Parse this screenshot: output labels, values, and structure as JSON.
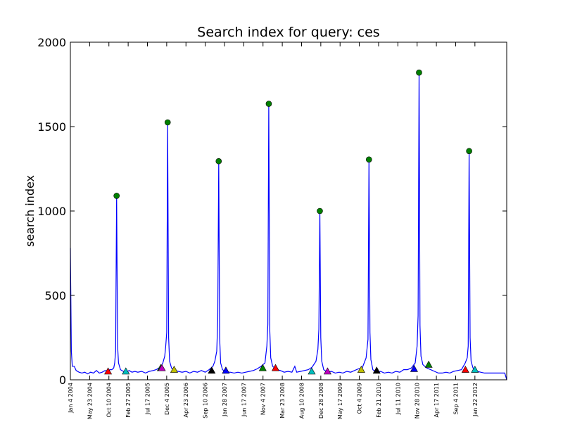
{
  "chart_data": {
    "type": "line",
    "title": "Search index for query: ces",
    "xlabel": "",
    "ylabel": "search index",
    "ylim": [
      0,
      2000
    ],
    "yticks": [
      0,
      500,
      1000,
      1500,
      2000
    ],
    "xlim": [
      "2004-01-04",
      "2012-09-09"
    ],
    "xticks": [
      "2004-01-04",
      "2004-05-23",
      "2004-10-10",
      "2005-02-27",
      "2005-07-17",
      "2005-12-04",
      "2006-04-23",
      "2006-09-10",
      "2007-01-28",
      "2007-06-17",
      "2007-11-04",
      "2008-03-23",
      "2008-08-10",
      "2008-12-28",
      "2009-05-17",
      "2009-10-04",
      "2010-02-21",
      "2010-07-11",
      "2010-11-28",
      "2011-04-17",
      "2011-09-04",
      "2012-01-22"
    ],
    "xticklabels": [
      "Jan 4 2004",
      "May 23 2004",
      "Oct 10 2004",
      "Feb 27 2005",
      "Jul 17 2005",
      "Dec 4 2005",
      "Apr 23 2006",
      "Sep 10 2006",
      "Jan 28 2007",
      "Jun 17 2007",
      "Nov 4 2007",
      "Mar 23 2008",
      "Aug 10 2008",
      "Dec 28 2008",
      "May 17 2009",
      "Oct 4 2009",
      "Feb 21 2010",
      "Jul 11 2010",
      "Nov 28 2010",
      "Apr 17 2011",
      "Sep 4 2011",
      "Jan 22 2012"
    ],
    "grid": false,
    "series": [
      {
        "color": "#0000ff",
        "points": [
          [
            "2004-01-04",
            780
          ],
          [
            "2004-01-11",
            170
          ],
          [
            "2004-01-18",
            80
          ],
          [
            "2004-01-25",
            80
          ],
          [
            "2004-02-01",
            80
          ],
          [
            "2004-02-15",
            55
          ],
          [
            "2004-03-07",
            45
          ],
          [
            "2004-03-28",
            40
          ],
          [
            "2004-04-18",
            45
          ],
          [
            "2004-05-09",
            35
          ],
          [
            "2004-05-30",
            45
          ],
          [
            "2004-06-20",
            40
          ],
          [
            "2004-07-11",
            55
          ],
          [
            "2004-08-01",
            40
          ],
          [
            "2004-08-22",
            45
          ],
          [
            "2004-09-12",
            55
          ],
          [
            "2004-09-26",
            50
          ],
          [
            "2004-10-17",
            60
          ],
          [
            "2004-10-31",
            60
          ],
          [
            "2004-11-14",
            70
          ],
          [
            "2004-11-21",
            100
          ],
          [
            "2004-11-28",
            170
          ],
          [
            "2004-12-05",
            1090
          ],
          [
            "2004-12-12",
            200
          ],
          [
            "2004-12-19",
            100
          ],
          [
            "2005-01-02",
            60
          ],
          [
            "2005-01-23",
            50
          ],
          [
            "2005-02-13",
            45
          ],
          [
            "2005-03-06",
            55
          ],
          [
            "2005-03-27",
            45
          ],
          [
            "2005-04-17",
            50
          ],
          [
            "2005-05-08",
            45
          ],
          [
            "2005-06-05",
            50
          ],
          [
            "2005-07-03",
            40
          ],
          [
            "2005-07-31",
            50
          ],
          [
            "2005-08-28",
            55
          ],
          [
            "2005-09-18",
            60
          ],
          [
            "2005-10-09",
            70
          ],
          [
            "2005-10-23",
            80
          ],
          [
            "2005-11-06",
            100
          ],
          [
            "2005-11-20",
            140
          ],
          [
            "2005-11-27",
            200
          ],
          [
            "2005-12-04",
            280
          ],
          [
            "2005-12-11",
            1525
          ],
          [
            "2005-12-18",
            250
          ],
          [
            "2005-12-25",
            110
          ],
          [
            "2006-01-08",
            70
          ],
          [
            "2006-01-29",
            55
          ],
          [
            "2006-02-26",
            50
          ],
          [
            "2006-03-26",
            45
          ],
          [
            "2006-04-23",
            50
          ],
          [
            "2006-05-21",
            40
          ],
          [
            "2006-06-18",
            50
          ],
          [
            "2006-07-16",
            45
          ],
          [
            "2006-08-13",
            55
          ],
          [
            "2006-09-10",
            45
          ],
          [
            "2006-10-08",
            60
          ],
          [
            "2006-11-05",
            80
          ],
          [
            "2006-11-19",
            110
          ],
          [
            "2006-12-03",
            170
          ],
          [
            "2006-12-10",
            350
          ],
          [
            "2006-12-17",
            1295
          ],
          [
            "2006-12-24",
            250
          ],
          [
            "2006-12-31",
            100
          ],
          [
            "2007-01-14",
            60
          ],
          [
            "2007-02-11",
            45
          ],
          [
            "2007-03-11",
            45
          ],
          [
            "2007-04-08",
            40
          ],
          [
            "2007-05-06",
            45
          ],
          [
            "2007-06-03",
            40
          ],
          [
            "2007-07-01",
            45
          ],
          [
            "2007-07-29",
            50
          ],
          [
            "2007-08-26",
            55
          ],
          [
            "2007-09-23",
            65
          ],
          [
            "2007-10-21",
            80
          ],
          [
            "2007-11-18",
            100
          ],
          [
            "2007-12-02",
            200
          ],
          [
            "2007-12-09",
            330
          ],
          [
            "2007-12-16",
            1635
          ],
          [
            "2007-12-23",
            300
          ],
          [
            "2007-12-30",
            130
          ],
          [
            "2008-01-13",
            80
          ],
          [
            "2008-02-10",
            60
          ],
          [
            "2008-03-09",
            55
          ],
          [
            "2008-04-06",
            45
          ],
          [
            "2008-05-04",
            50
          ],
          [
            "2008-06-01",
            45
          ],
          [
            "2008-06-22",
            80
          ],
          [
            "2008-07-06",
            45
          ],
          [
            "2008-08-03",
            50
          ],
          [
            "2008-08-31",
            55
          ],
          [
            "2008-09-28",
            60
          ],
          [
            "2008-10-26",
            75
          ],
          [
            "2008-11-23",
            110
          ],
          [
            "2008-12-07",
            180
          ],
          [
            "2008-12-14",
            300
          ],
          [
            "2008-12-21",
            1000
          ],
          [
            "2008-12-28",
            250
          ],
          [
            "2009-01-04",
            110
          ],
          [
            "2009-01-18",
            60
          ],
          [
            "2009-02-15",
            45
          ],
          [
            "2009-03-15",
            50
          ],
          [
            "2009-04-12",
            40
          ],
          [
            "2009-05-10",
            45
          ],
          [
            "2009-06-07",
            40
          ],
          [
            "2009-07-05",
            50
          ],
          [
            "2009-08-02",
            45
          ],
          [
            "2009-08-30",
            55
          ],
          [
            "2009-09-27",
            65
          ],
          [
            "2009-10-25",
            70
          ],
          [
            "2009-11-22",
            130
          ],
          [
            "2009-12-06",
            240
          ],
          [
            "2009-12-13",
            1305
          ],
          [
            "2009-12-20",
            280
          ],
          [
            "2009-12-27",
            120
          ],
          [
            "2010-01-10",
            60
          ],
          [
            "2010-02-07",
            45
          ],
          [
            "2010-03-07",
            50
          ],
          [
            "2010-04-04",
            40
          ],
          [
            "2010-05-02",
            45
          ],
          [
            "2010-05-30",
            40
          ],
          [
            "2010-06-27",
            50
          ],
          [
            "2010-07-25",
            45
          ],
          [
            "2010-08-22",
            60
          ],
          [
            "2010-09-19",
            60
          ],
          [
            "2010-10-17",
            70
          ],
          [
            "2010-11-14",
            100
          ],
          [
            "2010-11-28",
            200
          ],
          [
            "2010-12-05",
            380
          ],
          [
            "2010-12-12",
            1820
          ],
          [
            "2010-12-19",
            320
          ],
          [
            "2010-12-26",
            140
          ],
          [
            "2011-01-09",
            90
          ],
          [
            "2011-02-06",
            70
          ],
          [
            "2011-03-06",
            60
          ],
          [
            "2011-04-03",
            50
          ],
          [
            "2011-05-01",
            40
          ],
          [
            "2011-05-29",
            40
          ],
          [
            "2011-06-26",
            45
          ],
          [
            "2011-07-24",
            40
          ],
          [
            "2011-08-21",
            50
          ],
          [
            "2011-09-18",
            55
          ],
          [
            "2011-10-16",
            60
          ],
          [
            "2011-11-13",
            100
          ],
          [
            "2011-11-27",
            130
          ],
          [
            "2011-12-04",
            200
          ],
          [
            "2011-12-11",
            1355
          ],
          [
            "2011-12-18",
            250
          ],
          [
            "2011-12-25",
            110
          ],
          [
            "2012-01-08",
            70
          ],
          [
            "2012-02-05",
            50
          ],
          [
            "2012-03-04",
            45
          ],
          [
            "2012-04-01",
            40
          ],
          [
            "2012-05-06",
            40
          ],
          [
            "2012-06-03",
            40
          ],
          [
            "2012-07-01",
            40
          ],
          [
            "2012-07-29",
            40
          ],
          [
            "2012-08-26",
            40
          ],
          [
            "2012-09-09",
            0
          ]
        ]
      }
    ],
    "peak_markers": {
      "shape": "circle",
      "color": "#008000",
      "points": [
        [
          "2004-12-05",
          1090
        ],
        [
          "2005-12-11",
          1525
        ],
        [
          "2006-12-17",
          1295
        ],
        [
          "2007-12-16",
          1635
        ],
        [
          "2008-12-21",
          1000
        ],
        [
          "2009-12-13",
          1305
        ],
        [
          "2010-12-12",
          1820
        ],
        [
          "2011-12-11",
          1355
        ]
      ]
    },
    "event_markers": {
      "shape": "triangle",
      "points": [
        [
          "2004-10-04",
          50,
          "#ff0000"
        ],
        [
          "2005-02-10",
          50,
          "#00bfbf"
        ],
        [
          "2005-10-22",
          70,
          "#008000"
        ],
        [
          "2005-10-30",
          70,
          "#bf00bf"
        ],
        [
          "2006-01-27",
          60,
          "#bfbf00"
        ],
        [
          "2006-10-27",
          55,
          "#000000"
        ],
        [
          "2007-02-07",
          55,
          "#0000ff"
        ],
        [
          "2007-11-02",
          70,
          "#008000"
        ],
        [
          "2008-02-03",
          70,
          "#ff0000"
        ],
        [
          "2008-10-23",
          50,
          "#00bfbf"
        ],
        [
          "2009-02-15",
          50,
          "#bf00bf"
        ],
        [
          "2009-10-18",
          60,
          "#bfbf00"
        ],
        [
          "2010-02-07",
          55,
          "#000000"
        ],
        [
          "2010-11-06",
          65,
          "#0000ff"
        ],
        [
          "2011-02-20",
          90,
          "#008000"
        ],
        [
          "2011-11-14",
          60,
          "#ff0000"
        ],
        [
          "2012-01-22",
          60,
          "#00bfbf"
        ]
      ]
    }
  }
}
